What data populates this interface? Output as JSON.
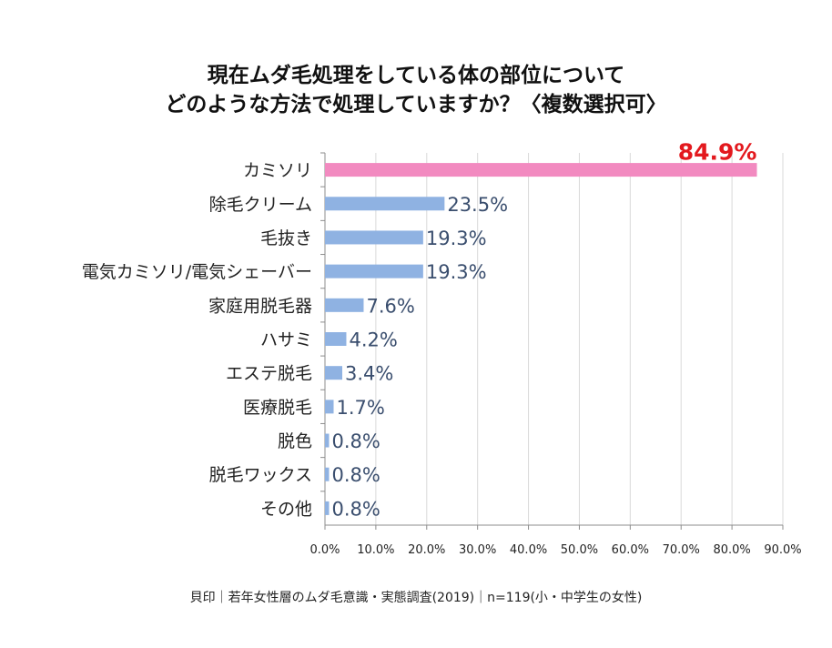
{
  "title_lines": [
    "現在ムダ毛処理をしている体の部位について",
    "どのような方法で処理していますか？〈複数選択可〉"
  ],
  "source": "貝印｜若年女性層のムダ毛意識・実態調査(2019)｜n=119(小・中学生の女性)",
  "colors": {
    "default_bar": "#8fb2e2",
    "highlight_bar": "#f28ac0",
    "highlight_label": "#e3191e",
    "value_label": "#3a4e6e"
  },
  "chart_data": {
    "type": "bar",
    "orientation": "horizontal",
    "categories": [
      "カミソリ",
      "除毛クリーム",
      "毛抜き",
      "電気カミソリ/電気シェーバー",
      "家庭用脱毛器",
      "ハサミ",
      "エステ脱毛",
      "医療脱毛",
      "脱色",
      "脱毛ワックス",
      "その他"
    ],
    "values": [
      84.9,
      23.5,
      19.3,
      19.3,
      7.6,
      4.2,
      3.4,
      1.7,
      0.8,
      0.8,
      0.8
    ],
    "value_labels": [
      "84.9%",
      "23.5%",
      "19.3%",
      "19.3%",
      "7.6%",
      "4.2%",
      "3.4%",
      "1.7%",
      "0.8%",
      "0.8%",
      "0.8%"
    ],
    "highlight_index": 0,
    "xlim": [
      0,
      90
    ],
    "xticks": [
      0,
      10,
      20,
      30,
      40,
      50,
      60,
      70,
      80,
      90
    ],
    "xtick_labels": [
      "0.0%",
      "10.0%",
      "20.0%",
      "30.0%",
      "40.0%",
      "50.0%",
      "60.0%",
      "70.0%",
      "80.0%",
      "90.0%"
    ],
    "grid": "vertical",
    "legend": "none"
  }
}
